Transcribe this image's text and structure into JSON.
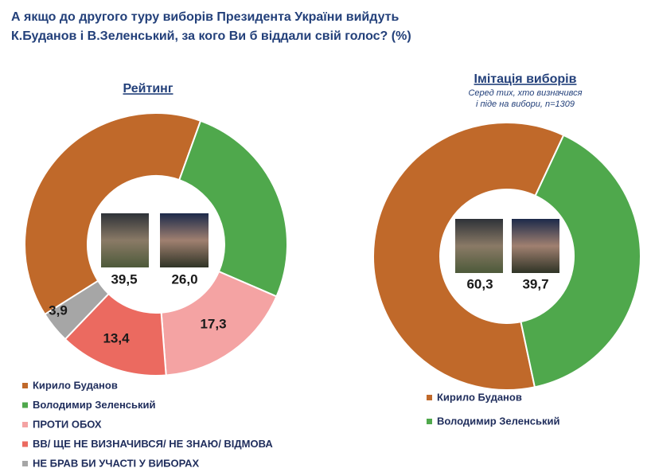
{
  "title": [
    "А якщо до другого туру виборів Президента України вийдуть",
    "К.Буданов і В.Зеленський, за кого Ви б віддали свій голос? (%)"
  ],
  "chart_data": [
    {
      "type": "donut",
      "title": "Рейтинг",
      "categories": [
        "Кирило Буданов",
        "Володимир Зеленський",
        "ПРОТИ ОБОХ",
        "ВВ/ ЩЕ НЕ ВИЗНАЧИВСЯ/ НЕ ЗНАЮ/ ВІДМОВА",
        "НЕ БРАВ БИ УЧАСТІ У ВИБОРАХ"
      ],
      "values": [
        39.5,
        26.0,
        17.3,
        13.4,
        3.9
      ],
      "value_labels": [
        "39,5",
        "26,0",
        "17,3",
        "13,4",
        "3,9"
      ],
      "colors": [
        "#c0692a",
        "#4fa84c",
        "#f4a3a3",
        "#eb6a60",
        "#a6a6a6"
      ]
    },
    {
      "type": "donut",
      "title": "Імітація виборів",
      "subtitle": [
        "Серед тих, хто визначився",
        "і піде на вибори, n=1309"
      ],
      "categories": [
        "Кирило Буданов",
        "Володимир Зеленський"
      ],
      "values": [
        60.3,
        39.7
      ],
      "value_labels": [
        "60,3",
        "39,7"
      ],
      "colors": [
        "#c0692a",
        "#4fa84c"
      ]
    }
  ]
}
